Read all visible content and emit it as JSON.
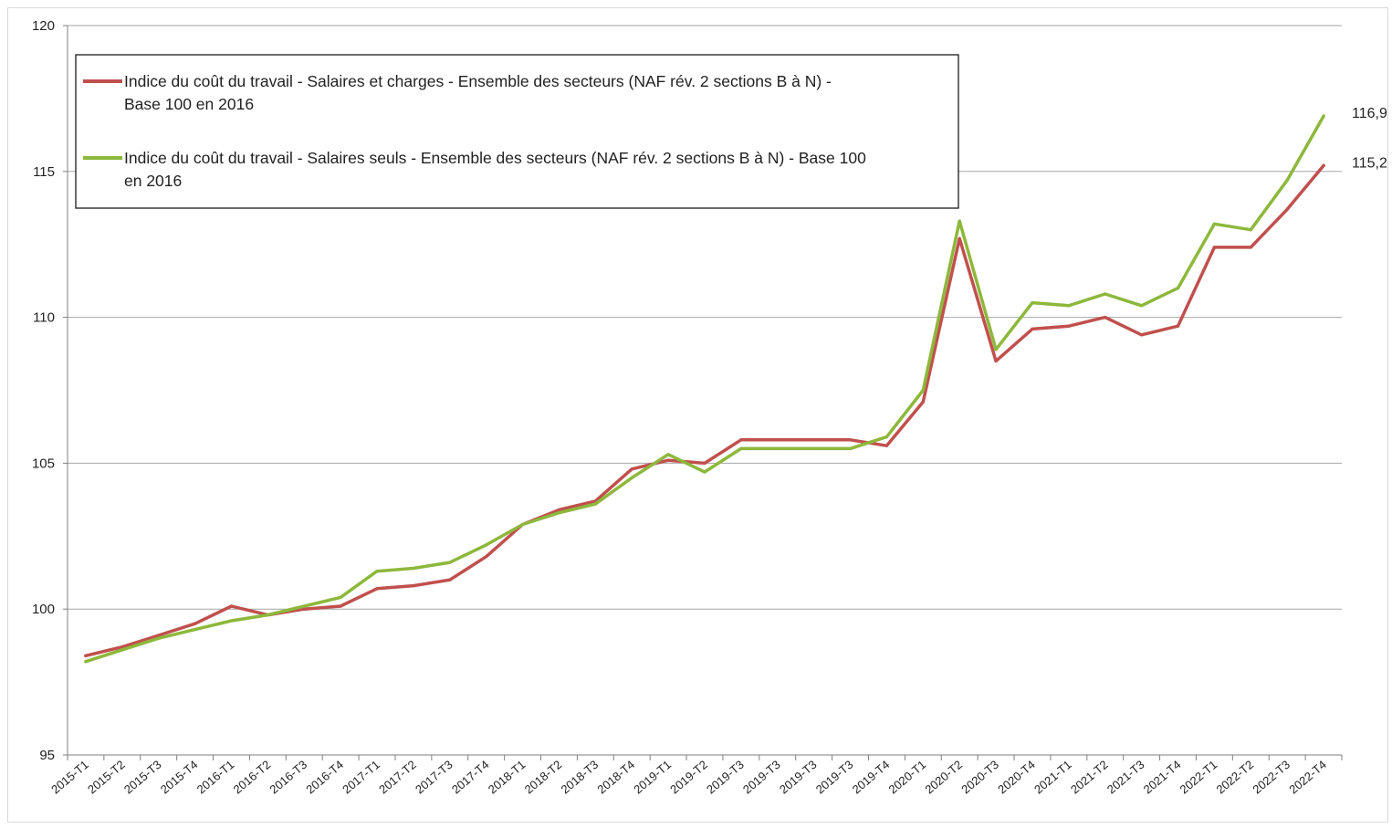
{
  "chart_data": {
    "type": "line",
    "title": "",
    "xlabel": "",
    "ylabel": "",
    "ylim": [
      95,
      120
    ],
    "yticks": [
      95,
      100,
      105,
      110,
      115,
      120
    ],
    "grid": "horizontal",
    "legend_position": "top-left",
    "categories": [
      "2015-T1",
      "2015-T2",
      "2015-T3",
      "2015-T4",
      "2016-T1",
      "2016-T2",
      "2016-T3",
      "2016-T4",
      "2017-T1",
      "2017-T2",
      "2017-T3",
      "2017-T4",
      "2018-T1",
      "2018-T2",
      "2018-T3",
      "2018-T4",
      "2019-T1",
      "2019-T2",
      "2019-T3",
      "2019-T3",
      "2019-T3",
      "2019-T3",
      "2019-T4",
      "2020-T1",
      "2020-T2",
      "2020-T3",
      "2020-T4",
      "2021-T1",
      "2021-T2",
      "2021-T3",
      "2021-T4",
      "2022-T1",
      "2022-T2",
      "2022-T3",
      "2022-T4"
    ],
    "series": [
      {
        "name": "Indice du coût du travail - Salaires et charges - Ensemble des secteurs (NAF rév. 2 sections B à N) - Base 100 en 2016",
        "legend_lines": [
          "Indice du coût du travail - Salaires et charges - Ensemble des secteurs (NAF rév. 2 sections B à N) -",
          "Base 100 en 2016"
        ],
        "color": "#c0504d",
        "values": [
          98.4,
          98.7,
          99.1,
          99.5,
          100.1,
          99.8,
          100.0,
          100.1,
          100.7,
          100.8,
          101.0,
          101.8,
          102.9,
          103.4,
          103.7,
          104.8,
          105.1,
          105.0,
          105.8,
          105.8,
          105.8,
          105.8,
          105.6,
          107.1,
          112.7,
          108.5,
          109.6,
          109.7,
          110.0,
          109.4,
          109.7,
          112.4,
          112.4,
          113.7,
          115.2
        ],
        "end_label": "115,2"
      },
      {
        "name": "Indice du coût du travail - Salaires seuls - Ensemble des secteurs (NAF rév. 2 sections B à N) - Base 100 en 2016",
        "legend_lines": [
          "Indice du coût du travail - Salaires seuls - Ensemble des secteurs (NAF rév. 2 sections B à N) - Base 100",
          "en 2016"
        ],
        "color": "#8db83c",
        "values": [
          98.2,
          98.6,
          99.0,
          99.3,
          99.6,
          99.8,
          100.1,
          100.4,
          101.3,
          101.4,
          101.6,
          102.2,
          102.9,
          103.3,
          103.6,
          104.5,
          105.3,
          104.7,
          105.5,
          105.5,
          105.5,
          105.5,
          105.9,
          107.5,
          113.3,
          108.9,
          110.5,
          110.4,
          110.8,
          110.4,
          111.0,
          113.2,
          113.0,
          114.7,
          116.9
        ],
        "end_label": "116,9"
      }
    ]
  }
}
